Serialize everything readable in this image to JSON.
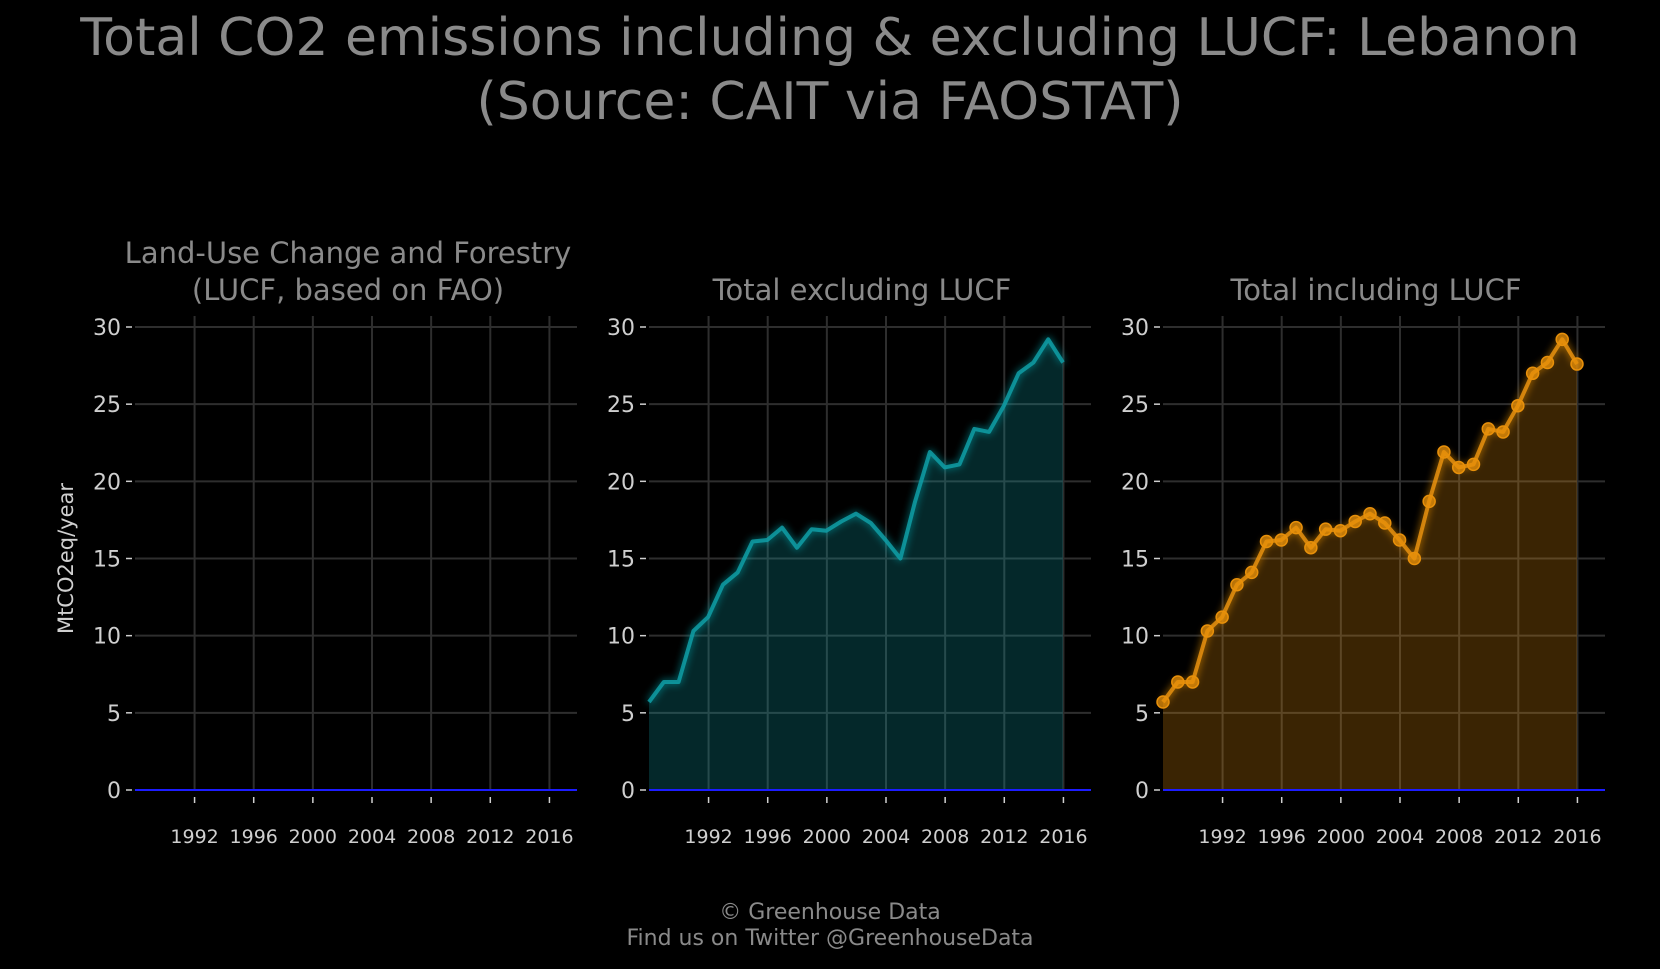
{
  "title": {
    "line1": "Total CO2 emissions including & excluding LUCF: Lebanon",
    "line2": "(Source: CAIT via FAOSTAT)"
  },
  "credits": {
    "line1": "© Greenhouse Data",
    "line2": "Find us on Twitter @GreenhouseData"
  },
  "colors": {
    "background": "#000000",
    "grid": "#2e2e2e",
    "text": "#8a8a8a",
    "tick_text": "#cfcfcf",
    "zero_line": "#1c1cff",
    "lucf": "#1a7a1a",
    "excl": "#0e9ea6",
    "incl": "#e8900a"
  },
  "chart_data": [
    {
      "type": "area",
      "title": "Land-Use Change and Forestry\n(LUCF, based on FAO)",
      "ylabel": "MtCO2eq/year",
      "xlabel": "",
      "xlim": [
        1990,
        2018
      ],
      "ylim": [
        0,
        30
      ],
      "xticks": [
        1992,
        1996,
        2000,
        2004,
        2008,
        2012,
        2016
      ],
      "yticks": [
        0,
        5,
        10,
        15,
        20,
        25,
        30
      ],
      "grid": true,
      "markers": false,
      "color": "#1a7a1a",
      "x": [
        1990,
        1991,
        1992,
        1993,
        1994,
        1995,
        1996,
        1997,
        1998,
        1999,
        2000,
        2001,
        2002,
        2003,
        2004,
        2005,
        2006,
        2007,
        2008,
        2009,
        2010,
        2011,
        2012,
        2013,
        2014,
        2015,
        2016,
        2017,
        2018
      ],
      "values": [
        0.01,
        0.01,
        0.01,
        0.01,
        0.01,
        0.01,
        0.01,
        0.01,
        0.01,
        0.01,
        0.01,
        0.01,
        0.01,
        0.01,
        0.01,
        0.01,
        0.01,
        0.01,
        0.01,
        0.01,
        0.01,
        -0.03,
        -0.03,
        -0.03,
        -0.03,
        -0.03,
        -0.03,
        -0.03,
        -0.03
      ]
    },
    {
      "type": "area",
      "title": "Total excluding LUCF",
      "ylabel": "",
      "xlabel": "",
      "xlim": [
        1990,
        2018
      ],
      "ylim": [
        0,
        30
      ],
      "xticks": [
        1992,
        1996,
        2000,
        2004,
        2008,
        2012,
        2016
      ],
      "yticks": [
        0,
        5,
        10,
        15,
        20,
        25,
        30
      ],
      "grid": true,
      "markers": false,
      "color": "#0e9ea6",
      "x": [
        1990,
        1991,
        1992,
        1993,
        1994,
        1995,
        1996,
        1997,
        1998,
        1999,
        2000,
        2001,
        2002,
        2003,
        2004,
        2005,
        2006,
        2007,
        2008,
        2009,
        2010,
        2011,
        2012,
        2013,
        2014,
        2015,
        2016,
        2017,
        2018
      ],
      "values": [
        5.7,
        7.0,
        7.0,
        10.3,
        11.2,
        13.3,
        14.1,
        16.1,
        16.2,
        17.0,
        15.7,
        16.9,
        16.8,
        17.4,
        17.9,
        17.3,
        16.2,
        15.0,
        18.7,
        21.9,
        20.9,
        21.1,
        23.4,
        23.2,
        24.9,
        27.0,
        27.7,
        29.2,
        27.7
      ]
    },
    {
      "type": "area",
      "title": "Total including LUCF",
      "ylabel": "",
      "xlabel": "",
      "xlim": [
        1990,
        2018
      ],
      "ylim": [
        0,
        30
      ],
      "xticks": [
        1992,
        1996,
        2000,
        2004,
        2008,
        2012,
        2016
      ],
      "yticks": [
        0,
        5,
        10,
        15,
        20,
        25,
        30
      ],
      "grid": true,
      "markers": true,
      "color": "#e8900a",
      "x": [
        1990,
        1991,
        1992,
        1993,
        1994,
        1995,
        1996,
        1997,
        1998,
        1999,
        2000,
        2001,
        2002,
        2003,
        2004,
        2005,
        2006,
        2007,
        2008,
        2009,
        2010,
        2011,
        2012,
        2013,
        2014,
        2015,
        2016,
        2017,
        2018
      ],
      "values": [
        5.7,
        7.0,
        7.0,
        10.3,
        11.2,
        13.3,
        14.1,
        16.1,
        16.2,
        17.0,
        15.7,
        16.9,
        16.8,
        17.4,
        17.9,
        17.3,
        16.2,
        15.0,
        18.7,
        21.9,
        20.9,
        21.1,
        23.4,
        23.2,
        24.9,
        27.0,
        27.7,
        29.2,
        27.6
      ]
    }
  ]
}
